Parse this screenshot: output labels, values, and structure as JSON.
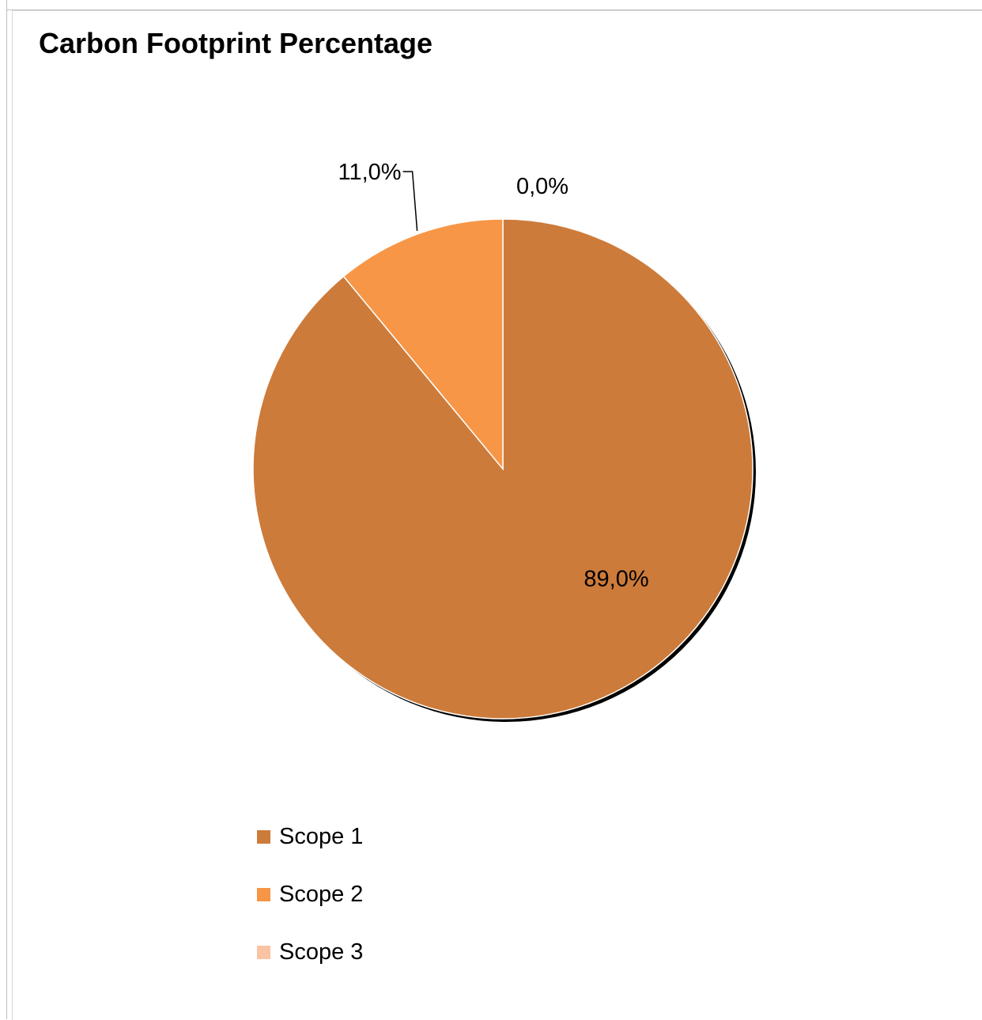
{
  "chart_data": {
    "type": "pie",
    "title": "Carbon Footprint Percentage",
    "slices": [
      {
        "name": "Scope 1",
        "value": 89.0,
        "label": "89,0%",
        "color": "#CD7B3A"
      },
      {
        "name": "Scope 2",
        "value": 11.0,
        "label": "11,0%",
        "color": "#F79646"
      },
      {
        "name": "Scope 3",
        "value": 0.0,
        "label": "0,0%",
        "color": "#F9C3A4"
      }
    ],
    "legend_position": "bottom"
  }
}
